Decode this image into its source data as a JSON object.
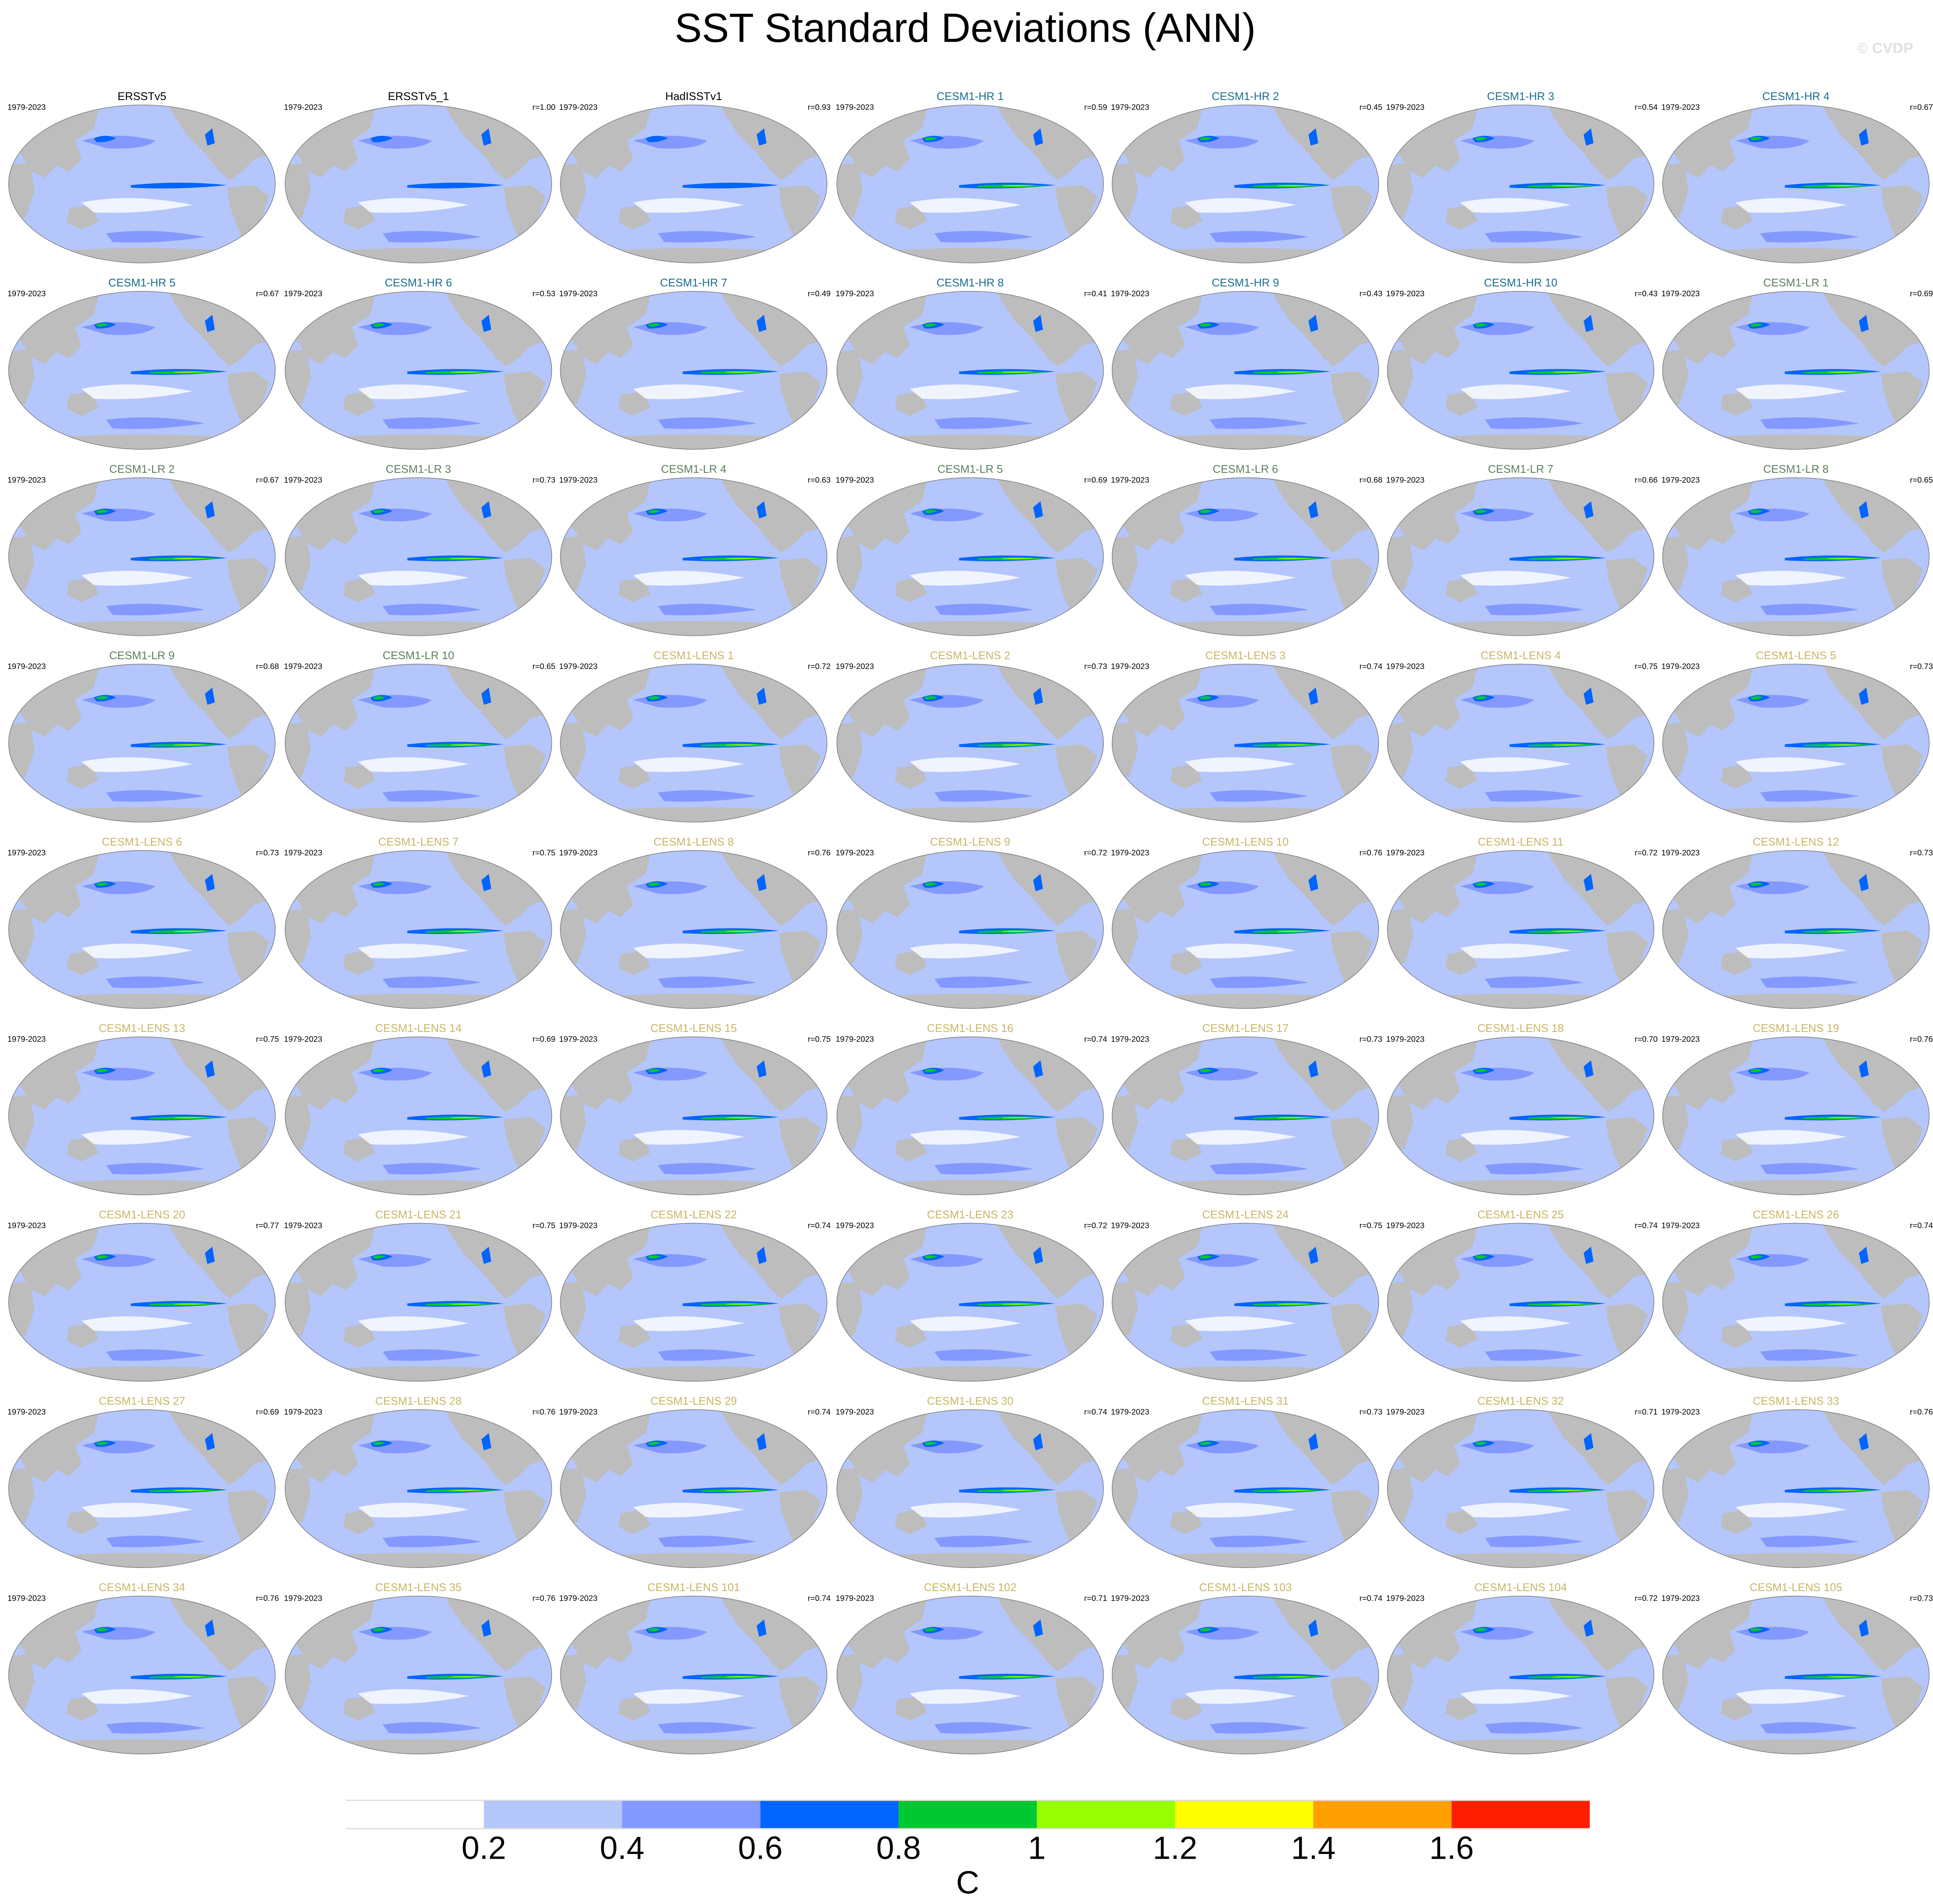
{
  "title": "SST Standard Deviations (ANN)",
  "credit": "© CVDP",
  "period": "1979-2023",
  "group_colors": {
    "obs": "#000000",
    "hr": "#1a6e8e",
    "lr": "#5e7f5e",
    "lens": "#c9b665"
  },
  "panels": [
    {
      "title": "ERSSTv5",
      "r": "",
      "g": "obs"
    },
    {
      "title": "ERSSTv5_1",
      "r": "r=1.00",
      "g": "obs"
    },
    {
      "title": "HadISSTv1",
      "r": "r=0.93",
      "g": "obs"
    },
    {
      "title": "CESM1-HR 1",
      "r": "r=0.59",
      "g": "hr"
    },
    {
      "title": "CESM1-HR 2",
      "r": "r=0.45",
      "g": "hr"
    },
    {
      "title": "CESM1-HR 3",
      "r": "r=0.54",
      "g": "hr"
    },
    {
      "title": "CESM1-HR 4",
      "r": "r=0.67",
      "g": "hr"
    },
    {
      "title": "CESM1-HR 5",
      "r": "r=0.67",
      "g": "hr"
    },
    {
      "title": "CESM1-HR 6",
      "r": "r=0.53",
      "g": "hr"
    },
    {
      "title": "CESM1-HR 7",
      "r": "r=0.49",
      "g": "hr"
    },
    {
      "title": "CESM1-HR 8",
      "r": "r=0.41",
      "g": "hr"
    },
    {
      "title": "CESM1-HR 9",
      "r": "r=0.43",
      "g": "hr"
    },
    {
      "title": "CESM1-HR 10",
      "r": "r=0.43",
      "g": "hr"
    },
    {
      "title": "CESM1-LR 1",
      "r": "r=0.69",
      "g": "lr"
    },
    {
      "title": "CESM1-LR 2",
      "r": "r=0.67",
      "g": "lr"
    },
    {
      "title": "CESM1-LR 3",
      "r": "r=0.73",
      "g": "lr"
    },
    {
      "title": "CESM1-LR 4",
      "r": "r=0.63",
      "g": "lr"
    },
    {
      "title": "CESM1-LR 5",
      "r": "r=0.69",
      "g": "lr"
    },
    {
      "title": "CESM1-LR 6",
      "r": "r=0.68",
      "g": "lr"
    },
    {
      "title": "CESM1-LR 7",
      "r": "r=0.66",
      "g": "lr"
    },
    {
      "title": "CESM1-LR 8",
      "r": "r=0.65",
      "g": "lr"
    },
    {
      "title": "CESM1-LR 9",
      "r": "r=0.68",
      "g": "lr"
    },
    {
      "title": "CESM1-LR 10",
      "r": "r=0.65",
      "g": "lr"
    },
    {
      "title": "CESM1-LENS 1",
      "r": "r=0.72",
      "g": "lens"
    },
    {
      "title": "CESM1-LENS 2",
      "r": "r=0.73",
      "g": "lens"
    },
    {
      "title": "CESM1-LENS 3",
      "r": "r=0.74",
      "g": "lens"
    },
    {
      "title": "CESM1-LENS 4",
      "r": "r=0.75",
      "g": "lens"
    },
    {
      "title": "CESM1-LENS 5",
      "r": "r=0.73",
      "g": "lens"
    },
    {
      "title": "CESM1-LENS 6",
      "r": "r=0.73",
      "g": "lens"
    },
    {
      "title": "CESM1-LENS 7",
      "r": "r=0.75",
      "g": "lens"
    },
    {
      "title": "CESM1-LENS 8",
      "r": "r=0.76",
      "g": "lens"
    },
    {
      "title": "CESM1-LENS 9",
      "r": "r=0.72",
      "g": "lens"
    },
    {
      "title": "CESM1-LENS 10",
      "r": "r=0.76",
      "g": "lens"
    },
    {
      "title": "CESM1-LENS 11",
      "r": "r=0.72",
      "g": "lens"
    },
    {
      "title": "CESM1-LENS 12",
      "r": "r=0.73",
      "g": "lens"
    },
    {
      "title": "CESM1-LENS 13",
      "r": "r=0.75",
      "g": "lens"
    },
    {
      "title": "CESM1-LENS 14",
      "r": "r=0.69",
      "g": "lens"
    },
    {
      "title": "CESM1-LENS 15",
      "r": "r=0.75",
      "g": "lens"
    },
    {
      "title": "CESM1-LENS 16",
      "r": "r=0.74",
      "g": "lens"
    },
    {
      "title": "CESM1-LENS 17",
      "r": "r=0.73",
      "g": "lens"
    },
    {
      "title": "CESM1-LENS 18",
      "r": "r=0.70",
      "g": "lens"
    },
    {
      "title": "CESM1-LENS 19",
      "r": "r=0.76",
      "g": "lens"
    },
    {
      "title": "CESM1-LENS 20",
      "r": "r=0.77",
      "g": "lens"
    },
    {
      "title": "CESM1-LENS 21",
      "r": "r=0.75",
      "g": "lens"
    },
    {
      "title": "CESM1-LENS 22",
      "r": "r=0.74",
      "g": "lens"
    },
    {
      "title": "CESM1-LENS 23",
      "r": "r=0.72",
      "g": "lens"
    },
    {
      "title": "CESM1-LENS 24",
      "r": "r=0.75",
      "g": "lens"
    },
    {
      "title": "CESM1-LENS 25",
      "r": "r=0.74",
      "g": "lens"
    },
    {
      "title": "CESM1-LENS 26",
      "r": "r=0.74",
      "g": "lens"
    },
    {
      "title": "CESM1-LENS 27",
      "r": "r=0.69",
      "g": "lens"
    },
    {
      "title": "CESM1-LENS 28",
      "r": "r=0.76",
      "g": "lens"
    },
    {
      "title": "CESM1-LENS 29",
      "r": "r=0.74",
      "g": "lens"
    },
    {
      "title": "CESM1-LENS 30",
      "r": "r=0.74",
      "g": "lens"
    },
    {
      "title": "CESM1-LENS 31",
      "r": "r=0.73",
      "g": "lens"
    },
    {
      "title": "CESM1-LENS 32",
      "r": "r=0.71",
      "g": "lens"
    },
    {
      "title": "CESM1-LENS 33",
      "r": "r=0.76",
      "g": "lens"
    },
    {
      "title": "CESM1-LENS 34",
      "r": "r=0.76",
      "g": "lens"
    },
    {
      "title": "CESM1-LENS 35",
      "r": "r=0.76",
      "g": "lens"
    },
    {
      "title": "CESM1-LENS 101",
      "r": "r=0.74",
      "g": "lens"
    },
    {
      "title": "CESM1-LENS 102",
      "r": "r=0.71",
      "g": "lens"
    },
    {
      "title": "CESM1-LENS 103",
      "r": "r=0.74",
      "g": "lens"
    },
    {
      "title": "CESM1-LENS 104",
      "r": "r=0.72",
      "g": "lens"
    },
    {
      "title": "CESM1-LENS 105",
      "r": "r=0.73",
      "g": "lens"
    }
  ],
  "chart_data": {
    "type": "heatmap",
    "title": "SST Standard Deviations (ANN)",
    "units": "C",
    "colorbar": {
      "levels": [
        "0.2",
        "0.4",
        "0.6",
        "0.8",
        "1",
        "1.2",
        "1.4",
        "1.6"
      ],
      "colors": [
        "#ffffff",
        "#b4c6fc",
        "#8399ff",
        "#0064ff",
        "#00c832",
        "#96ff00",
        "#ffff00",
        "#ffa000",
        "#ff1e00"
      ]
    },
    "layout": "7 columns x 9 rows of global maps"
  }
}
